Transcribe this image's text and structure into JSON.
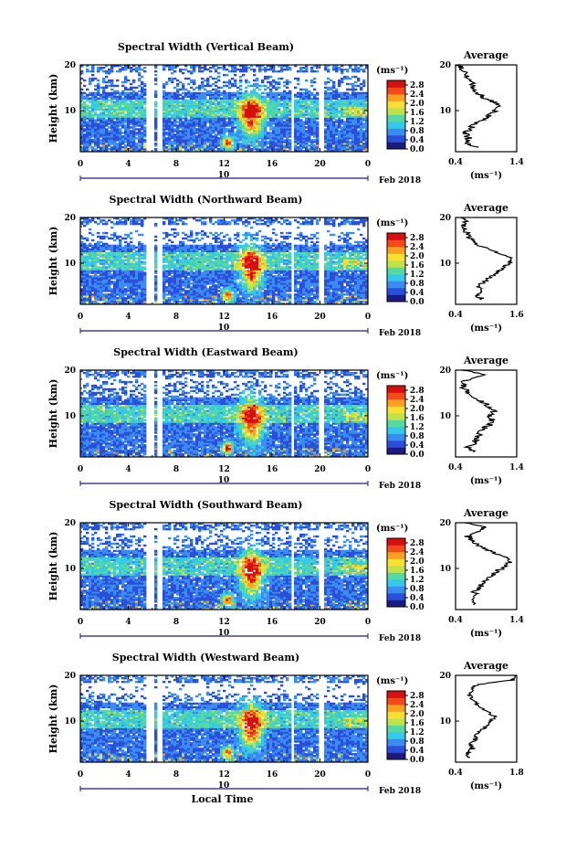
{
  "figure": {
    "date_number": "10",
    "date_label": "Feb 2018",
    "xlabel": "Local Time",
    "unit_label": "(ms⁻¹)",
    "avg_title": "Average"
  },
  "panels": [
    {
      "title": "Spectral Width (Vertical Beam)",
      "avg_ticks": [
        "0.4",
        "1.4"
      ]
    },
    {
      "title": "Spectral Width (Northward Beam)",
      "avg_ticks": [
        "0.4",
        "1.6"
      ]
    },
    {
      "title": "Spectral Width (Eastward Beam)",
      "avg_ticks": [
        "0.4",
        "1.4"
      ]
    },
    {
      "title": "Spectral Width (Southward Beam)",
      "avg_ticks": [
        "0.4",
        "1.4"
      ]
    },
    {
      "title": "Spectral Width (Westward Beam)",
      "avg_ticks": [
        "0.4",
        "1.8"
      ]
    }
  ],
  "chart_data": {
    "type": "heatmap",
    "ylabel": "Height (km)",
    "x_ticks": [
      "0",
      "4",
      "8",
      "12",
      "16",
      "20",
      "0"
    ],
    "y_ticks": [
      "10",
      "20"
    ],
    "xlim": [
      0,
      24
    ],
    "ylim": [
      1,
      20
    ],
    "colorbar": {
      "ticks": [
        "0.0",
        "0.4",
        "0.8",
        "1.2",
        "1.6",
        "2.0",
        "2.4",
        "2.8"
      ],
      "range": [
        0,
        3.0
      ],
      "colors": [
        "#1a1a80",
        "#2a4fd8",
        "#3a8cf0",
        "#35c8e8",
        "#56d9a0",
        "#bfe24a",
        "#f7e033",
        "#f9a020",
        "#f24a1a",
        "#d41010"
      ]
    },
    "data_gaps_hours": [
      [
        5.6,
        6.1
      ],
      [
        6.4,
        6.9
      ],
      [
        17.6,
        17.9
      ],
      [
        20.0,
        20.3
      ]
    ],
    "averages": [
      {
        "beam": "Vertical",
        "xlim": [
          0.4,
          1.4
        ],
        "points": [
          [
            0.72,
            2
          ],
          [
            0.58,
            3
          ],
          [
            0.62,
            4
          ],
          [
            0.55,
            5
          ],
          [
            0.64,
            6
          ],
          [
            0.7,
            7
          ],
          [
            0.85,
            8
          ],
          [
            0.95,
            9
          ],
          [
            1.05,
            10
          ],
          [
            1.15,
            11
          ],
          [
            1.0,
            12
          ],
          [
            0.85,
            13
          ],
          [
            0.75,
            14
          ],
          [
            0.65,
            15
          ],
          [
            0.7,
            16
          ],
          [
            0.6,
            17
          ],
          [
            0.55,
            18
          ],
          [
            0.5,
            19
          ],
          [
            0.45,
            20
          ]
        ]
      },
      {
        "beam": "Northward",
        "xlim": [
          0.4,
          1.6
        ],
        "points": [
          [
            0.95,
            2
          ],
          [
            0.8,
            3
          ],
          [
            0.9,
            4
          ],
          [
            0.85,
            5
          ],
          [
            0.95,
            6
          ],
          [
            1.1,
            7
          ],
          [
            1.2,
            8
          ],
          [
            1.35,
            9
          ],
          [
            1.45,
            10
          ],
          [
            1.5,
            11
          ],
          [
            1.3,
            12
          ],
          [
            1.05,
            13
          ],
          [
            0.85,
            14
          ],
          [
            0.75,
            15
          ],
          [
            0.65,
            16
          ],
          [
            0.6,
            17
          ],
          [
            0.55,
            18
          ],
          [
            0.6,
            19
          ],
          [
            0.5,
            20
          ]
        ]
      },
      {
        "beam": "Eastward",
        "xlim": [
          0.4,
          1.4
        ],
        "points": [
          [
            0.7,
            2
          ],
          [
            0.6,
            3
          ],
          [
            0.7,
            4
          ],
          [
            0.75,
            5
          ],
          [
            0.8,
            6
          ],
          [
            0.85,
            7
          ],
          [
            0.95,
            8
          ],
          [
            1.0,
            9
          ],
          [
            0.95,
            10
          ],
          [
            1.05,
            11
          ],
          [
            0.95,
            12
          ],
          [
            0.85,
            13
          ],
          [
            0.7,
            14
          ],
          [
            0.6,
            15
          ],
          [
            0.55,
            16
          ],
          [
            0.5,
            17
          ],
          [
            0.6,
            18
          ],
          [
            0.9,
            19
          ],
          [
            0.5,
            20
          ]
        ]
      },
      {
        "beam": "Southward",
        "xlim": [
          0.4,
          1.4
        ],
        "points": [
          [
            0.75,
            2
          ],
          [
            0.65,
            3
          ],
          [
            0.75,
            4
          ],
          [
            0.7,
            5
          ],
          [
            0.8,
            6
          ],
          [
            0.85,
            7
          ],
          [
            0.95,
            8
          ],
          [
            1.05,
            9
          ],
          [
            1.15,
            10
          ],
          [
            1.25,
            11
          ],
          [
            1.3,
            12
          ],
          [
            1.1,
            13
          ],
          [
            0.95,
            14
          ],
          [
            0.8,
            15
          ],
          [
            0.7,
            16
          ],
          [
            0.6,
            17
          ],
          [
            0.75,
            18
          ],
          [
            0.9,
            19
          ],
          [
            0.55,
            20
          ]
        ]
      },
      {
        "beam": "Westward",
        "xlim": [
          0.4,
          1.8
        ],
        "points": [
          [
            0.75,
            2
          ],
          [
            0.65,
            3
          ],
          [
            0.8,
            4
          ],
          [
            0.75,
            5
          ],
          [
            0.85,
            6
          ],
          [
            0.9,
            7
          ],
          [
            1.0,
            8
          ],
          [
            1.1,
            9
          ],
          [
            1.2,
            10
          ],
          [
            1.3,
            11
          ],
          [
            1.15,
            12
          ],
          [
            1.0,
            13
          ],
          [
            0.85,
            14
          ],
          [
            0.75,
            15
          ],
          [
            0.7,
            16
          ],
          [
            0.8,
            17
          ],
          [
            0.9,
            18
          ],
          [
            1.7,
            19
          ],
          [
            1.8,
            20
          ]
        ]
      }
    ]
  }
}
